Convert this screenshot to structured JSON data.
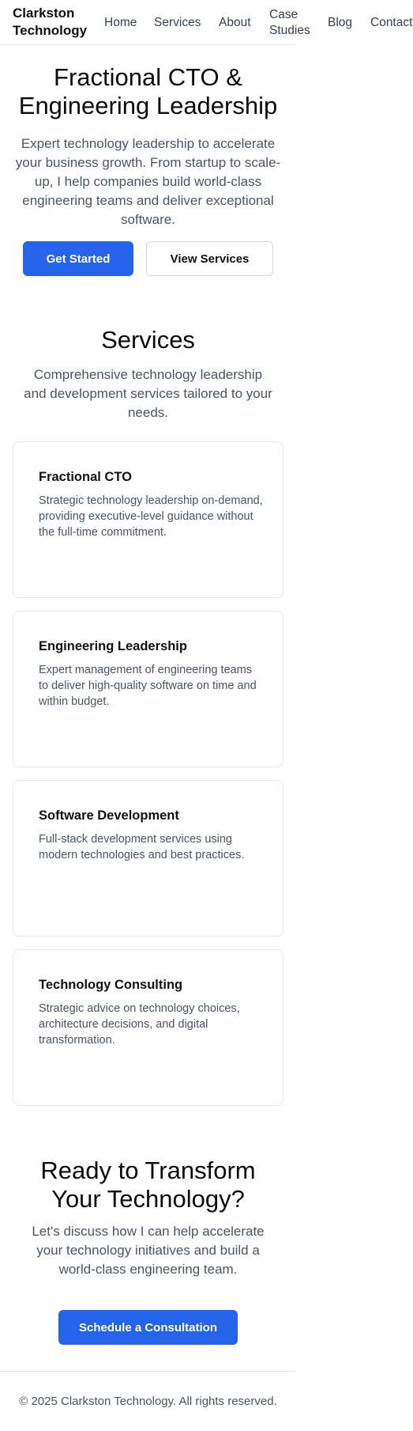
{
  "header": {
    "brand": "Clarkston Technology",
    "nav": [
      "Home",
      "Services",
      "About",
      "Case Studies",
      "Blog",
      "Contact"
    ]
  },
  "hero": {
    "title": "Fractional CTO & Engineering Leadership",
    "subtitle": "Expert technology leadership to accelerate your business growth. From startup to scale-up, I help companies build world-class engineering teams and deliver exceptional software.",
    "primary_button": "Get Started",
    "secondary_button": "View Services"
  },
  "services": {
    "title": "Services",
    "subtitle": "Comprehensive technology leadership and development services tailored to your needs.",
    "cards": [
      {
        "title": "Fractional CTO",
        "description": "Strategic technology leadership on-demand, providing executive-level guidance without the full-time commitment."
      },
      {
        "title": "Engineering Leadership",
        "description": "Expert management of engineering teams to deliver high-quality software on time and within budget."
      },
      {
        "title": "Software Development",
        "description": "Full-stack development services using modern technologies and best practices."
      },
      {
        "title": "Technology Consulting",
        "description": "Strategic advice on technology choices, architecture decisions, and digital transformation."
      }
    ]
  },
  "cta": {
    "title": "Ready to Transform Your Technology?",
    "subtitle": "Let's discuss how I can help accelerate your technology initiatives and build a world-class engineering team.",
    "button": "Schedule a Consultation"
  },
  "footer": {
    "copyright": "© 2025 Clarkston Technology. All rights reserved."
  },
  "colors": {
    "accent": "#2563eb",
    "text": "#111111",
    "muted": "#4b5563",
    "border": "#e5e7eb"
  }
}
